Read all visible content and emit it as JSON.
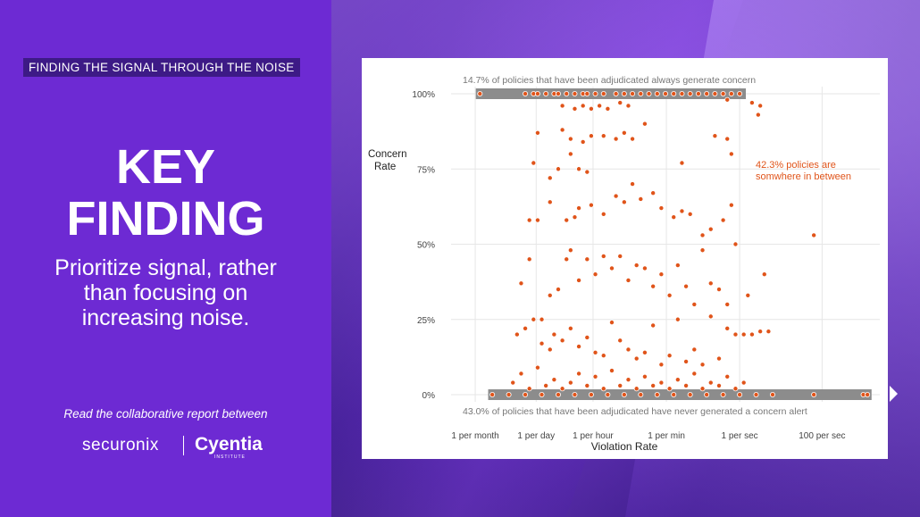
{
  "left": {
    "tagline": "FINDING THE SIGNAL THROUGH THE NOISE",
    "heading_line1": "KEY",
    "heading_line2": "FINDING",
    "subtitle_line1": "Prioritize signal, rather",
    "subtitle_line2": "than focusing on",
    "subtitle_line3": "increasing noise.",
    "read_text": "Read the collaborative report between",
    "logo1": "securonix",
    "logo2": "Cyentia",
    "logo2_small": "INSTITUTE"
  },
  "colors": {
    "panel": "#6d2ad3",
    "tagline_bg": "#3d1a86",
    "point": "#e0541a",
    "band": "#8c8c8c",
    "annotation": "#e0541a"
  },
  "chart_data": {
    "type": "scatter",
    "title": "",
    "xlabel": "Violation Rate",
    "ylabel_line1": "Concern",
    "ylabel_line2": "Rate",
    "x_scale": "log",
    "x_ticks": [
      {
        "label": "1 per month",
        "value": 3.86e-07
      },
      {
        "label": "1 per day",
        "value": 1.16e-05
      },
      {
        "label": "1 per hour",
        "value": 0.000278
      },
      {
        "label": "1 per min",
        "value": 0.0167
      },
      {
        "label": "1 per sec",
        "value": 1
      },
      {
        "label": "100 per sec",
        "value": 100
      }
    ],
    "y_ticks": [
      {
        "label": "0%",
        "value": 0
      },
      {
        "label": "25%",
        "value": 25
      },
      {
        "label": "50%",
        "value": 50
      },
      {
        "label": "75%",
        "value": 75
      },
      {
        "label": "100%",
        "value": 100
      }
    ],
    "ylim": [
      0,
      100
    ],
    "grid": true,
    "annotations": {
      "top": "14.7% of policies that have been adjudicated always generate concern",
      "bottom": "43.0% of policies that have been adjudicated have never generated a concern alert",
      "middle_line1": "42.3% policies are",
      "middle_line2": "somwhere in between"
    },
    "bands": [
      {
        "y": 100,
        "x_start_log10": -6.4,
        "x_end_log10": 0.15
      },
      {
        "y": 0,
        "x_start_log10": -6.1,
        "x_end_log10": 3.2
      }
    ],
    "points_log10x_y": [
      [
        -6.3,
        100
      ],
      [
        -5.2,
        100
      ],
      [
        -5.0,
        100
      ],
      [
        -4.9,
        100
      ],
      [
        -4.7,
        100
      ],
      [
        -4.5,
        100
      ],
      [
        -4.4,
        100
      ],
      [
        -4.2,
        100
      ],
      [
        -4.0,
        100
      ],
      [
        -3.8,
        100
      ],
      [
        -3.7,
        100
      ],
      [
        -3.5,
        100
      ],
      [
        -3.3,
        100
      ],
      [
        -3.0,
        100
      ],
      [
        -2.8,
        100
      ],
      [
        -2.6,
        100
      ],
      [
        -2.4,
        100
      ],
      [
        -2.2,
        100
      ],
      [
        -2.0,
        100
      ],
      [
        -1.8,
        100
      ],
      [
        -1.6,
        100
      ],
      [
        -1.4,
        100
      ],
      [
        -1.2,
        100
      ],
      [
        -1.0,
        100
      ],
      [
        -0.8,
        100
      ],
      [
        -0.6,
        100
      ],
      [
        -0.4,
        100
      ],
      [
        -0.2,
        100
      ],
      [
        0.0,
        100
      ],
      [
        -4.3,
        96
      ],
      [
        -4.0,
        95
      ],
      [
        -3.8,
        96
      ],
      [
        -3.6,
        95
      ],
      [
        -3.4,
        96
      ],
      [
        -3.2,
        95
      ],
      [
        -2.9,
        97
      ],
      [
        -2.7,
        96
      ],
      [
        -0.3,
        98
      ],
      [
        0.3,
        97
      ],
      [
        0.5,
        96
      ],
      [
        0.45,
        93
      ],
      [
        -4.9,
        87
      ],
      [
        -4.3,
        88
      ],
      [
        -4.1,
        85
      ],
      [
        -3.8,
        84
      ],
      [
        -3.6,
        86
      ],
      [
        -3.3,
        86
      ],
      [
        -3.0,
        85
      ],
      [
        -2.8,
        87
      ],
      [
        -2.6,
        85
      ],
      [
        -2.3,
        90
      ],
      [
        -0.6,
        86
      ],
      [
        -0.3,
        85
      ],
      [
        -0.2,
        80
      ],
      [
        -5.0,
        77
      ],
      [
        -4.6,
        72
      ],
      [
        -4.4,
        75
      ],
      [
        -4.1,
        80
      ],
      [
        -3.9,
        75
      ],
      [
        -3.7,
        74
      ],
      [
        -1.4,
        77
      ],
      [
        -5.1,
        58
      ],
      [
        -4.9,
        58
      ],
      [
        -4.6,
        64
      ],
      [
        -4.2,
        58
      ],
      [
        -4.0,
        59
      ],
      [
        -3.9,
        62
      ],
      [
        -3.6,
        63
      ],
      [
        -3.3,
        60
      ],
      [
        -3.0,
        66
      ],
      [
        -2.8,
        64
      ],
      [
        -2.6,
        70
      ],
      [
        -2.4,
        65
      ],
      [
        -2.1,
        67
      ],
      [
        -1.9,
        62
      ],
      [
        -1.6,
        59
      ],
      [
        -1.4,
        61
      ],
      [
        -1.2,
        60
      ],
      [
        -0.9,
        53
      ],
      [
        -0.7,
        55
      ],
      [
        -0.4,
        58
      ],
      [
        -0.2,
        63
      ],
      [
        1.8,
        53
      ],
      [
        -5.3,
        37
      ],
      [
        -5.1,
        45
      ],
      [
        -4.8,
        25
      ],
      [
        -4.6,
        33
      ],
      [
        -4.4,
        35
      ],
      [
        -4.2,
        45
      ],
      [
        -4.1,
        48
      ],
      [
        -3.9,
        38
      ],
      [
        -3.7,
        45
      ],
      [
        -3.5,
        40
      ],
      [
        -3.3,
        46
      ],
      [
        -3.1,
        42
      ],
      [
        -2.9,
        46
      ],
      [
        -2.7,
        38
      ],
      [
        -2.5,
        43
      ],
      [
        -2.3,
        42
      ],
      [
        -2.1,
        36
      ],
      [
        -1.9,
        40
      ],
      [
        -1.7,
        33
      ],
      [
        -1.5,
        43
      ],
      [
        -1.3,
        36
      ],
      [
        -1.1,
        30
      ],
      [
        -0.9,
        48
      ],
      [
        -0.7,
        37
      ],
      [
        -0.5,
        35
      ],
      [
        -0.3,
        30
      ],
      [
        -0.1,
        50
      ],
      [
        0.2,
        33
      ],
      [
        0.6,
        40
      ],
      [
        -5.4,
        20
      ],
      [
        -5.2,
        22
      ],
      [
        -5.0,
        25
      ],
      [
        -4.8,
        17
      ],
      [
        -4.6,
        15
      ],
      [
        -4.5,
        20
      ],
      [
        -4.3,
        18
      ],
      [
        -4.1,
        22
      ],
      [
        -3.9,
        16
      ],
      [
        -3.7,
        19
      ],
      [
        -3.5,
        14
      ],
      [
        -3.3,
        13
      ],
      [
        -3.1,
        24
      ],
      [
        -2.9,
        18
      ],
      [
        -2.7,
        15
      ],
      [
        -2.5,
        12
      ],
      [
        -2.3,
        14
      ],
      [
        -2.1,
        23
      ],
      [
        -1.9,
        10
      ],
      [
        -1.7,
        13
      ],
      [
        -1.5,
        25
      ],
      [
        -1.3,
        11
      ],
      [
        -1.1,
        15
      ],
      [
        -0.9,
        10
      ],
      [
        -0.7,
        26
      ],
      [
        -0.5,
        12
      ],
      [
        -0.3,
        22
      ],
      [
        -0.1,
        20
      ],
      [
        0.1,
        20
      ],
      [
        0.3,
        20
      ],
      [
        0.5,
        21
      ],
      [
        0.7,
        21
      ],
      [
        -5.5,
        4
      ],
      [
        -5.3,
        7
      ],
      [
        -5.1,
        2
      ],
      [
        -4.9,
        9
      ],
      [
        -4.7,
        3
      ],
      [
        -4.5,
        5
      ],
      [
        -4.3,
        2
      ],
      [
        -4.1,
        4
      ],
      [
        -3.9,
        7
      ],
      [
        -3.7,
        3
      ],
      [
        -3.5,
        6
      ],
      [
        -3.3,
        2
      ],
      [
        -3.1,
        8
      ],
      [
        -2.9,
        3
      ],
      [
        -2.7,
        5
      ],
      [
        -2.5,
        2
      ],
      [
        -2.3,
        6
      ],
      [
        -2.1,
        3
      ],
      [
        -1.9,
        4
      ],
      [
        -1.7,
        2
      ],
      [
        -1.5,
        5
      ],
      [
        -1.3,
        3
      ],
      [
        -1.1,
        7
      ],
      [
        -0.9,
        2
      ],
      [
        -0.7,
        4
      ],
      [
        -0.5,
        3
      ],
      [
        -0.3,
        6
      ],
      [
        -0.1,
        2
      ],
      [
        0.1,
        4
      ],
      [
        -6.0,
        0
      ],
      [
        -5.6,
        0
      ],
      [
        -5.2,
        0
      ],
      [
        -4.8,
        0
      ],
      [
        -4.4,
        0
      ],
      [
        -4.0,
        0
      ],
      [
        -3.6,
        0
      ],
      [
        -3.2,
        0
      ],
      [
        -2.8,
        0
      ],
      [
        -2.4,
        0
      ],
      [
        -2.0,
        0
      ],
      [
        -1.6,
        0
      ],
      [
        -1.2,
        0
      ],
      [
        -0.8,
        0
      ],
      [
        -0.4,
        0
      ],
      [
        0.0,
        0
      ],
      [
        0.4,
        0
      ],
      [
        0.8,
        0
      ],
      [
        1.8,
        0
      ],
      [
        3.0,
        0
      ],
      [
        3.1,
        0
      ]
    ]
  }
}
